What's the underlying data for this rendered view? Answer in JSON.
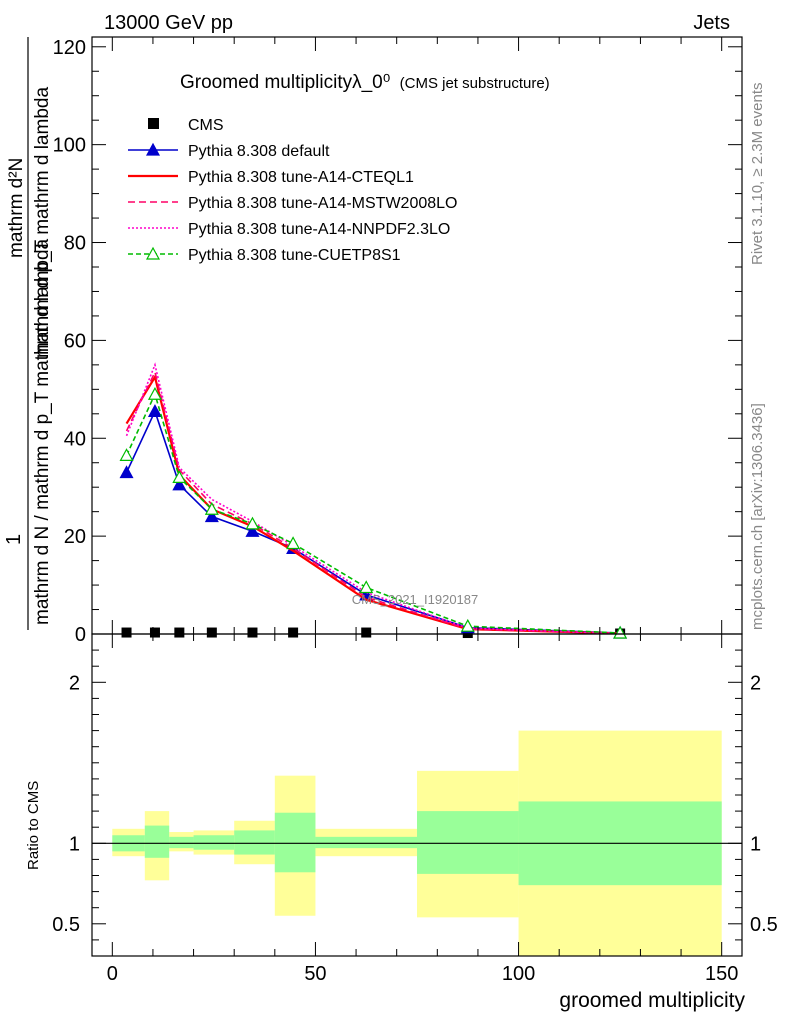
{
  "header": {
    "left": "13000 GeV pp",
    "right": "Jets"
  },
  "side_labels": {
    "rivet": "Rivet 3.1.10, ≥ 2.3M events",
    "mcplots": "mcplots.cern.ch [arXiv:1306.3436]"
  },
  "watermark": "CMS_2021_I1920187",
  "colors": {
    "cms": "#000000",
    "default": "#0000cc",
    "a14cteq": "#ff0000",
    "a14mstw": "#ff0066",
    "a14nnpdf": "#ff00cc",
    "cuetp8s1": "#00bb00",
    "band_outer": "#ffff99",
    "band_inner": "#99ff99"
  },
  "chart_data": [
    {
      "type": "line",
      "title": "Groomed multiplicityλ_0⁰",
      "subtitle": "(CMS jet substructure)",
      "ylabel_numerator": "1",
      "ylabel_denominator": "mathrm d N / mathrm d p_T mathrm d lambda",
      "ylabel_main": "mathrm d²N",
      "ylabel_main2": "mathrm d p_T mathrm d lambda",
      "xlim": [
        -5,
        155
      ],
      "ylim": [
        0,
        122
      ],
      "yticks": [
        0,
        20,
        40,
        60,
        80,
        100,
        120
      ],
      "ytick_labels": [
        "0",
        "20",
        "40",
        "60",
        "80",
        "100",
        "120"
      ],
      "legend": {
        "placement": "top-left"
      },
      "series": [
        {
          "key": "cms",
          "name": "CMS",
          "marker": "square",
          "x": [
            3.5,
            10.5,
            16.5,
            24.5,
            34.5,
            44.5,
            62.5,
            87.5,
            125
          ],
          "y": [
            0.3,
            0.3,
            0.3,
            0.3,
            0.3,
            0.3,
            0.3,
            0.2,
            0.1
          ]
        },
        {
          "key": "default",
          "name": "Pythia 8.308 default",
          "marker": "triangle",
          "dash": "",
          "x": [
            3.5,
            10.5,
            16.5,
            24.5,
            34.5,
            44.5,
            62.5,
            87.5,
            125
          ],
          "y": [
            33,
            45.5,
            30.5,
            24,
            21,
            17.5,
            8,
            1.3,
            0.2
          ]
        },
        {
          "key": "a14cteq",
          "name": "Pythia 8.308 tune-A14-CTEQL1",
          "marker": "",
          "dash": "",
          "x": [
            3.5,
            10.5,
            16.5,
            24.5,
            34.5,
            44.5,
            62.5,
            87.5,
            125
          ],
          "y": [
            43,
            52.5,
            32.5,
            25.5,
            22,
            17,
            7,
            1,
            0.1
          ]
        },
        {
          "key": "a14mstw",
          "name": "Pythia 8.308 tune-A14-MSTW2008LO",
          "marker": "",
          "dash": "7,4",
          "x": [
            3.5,
            10.5,
            16.5,
            24.5,
            34.5,
            44.5,
            62.5,
            87.5,
            125
          ],
          "y": [
            41.5,
            53.5,
            33.5,
            26.5,
            22.5,
            17.5,
            7.5,
            1,
            0.1
          ]
        },
        {
          "key": "a14nnpdf",
          "name": "Pythia 8.308 tune-A14-NNPDF2.3LO",
          "marker": "",
          "dash": "2,2",
          "x": [
            3.5,
            10.5,
            16.5,
            24.5,
            34.5,
            44.5,
            62.5,
            87.5,
            125
          ],
          "y": [
            40.5,
            55,
            34,
            27.5,
            23,
            18,
            8.5,
            1.2,
            0.1
          ]
        },
        {
          "key": "cuetp8s1",
          "name": "Pythia 8.308 tune-CUETP8S1",
          "marker": "triangle-open",
          "dash": "5,3",
          "x": [
            3.5,
            10.5,
            16.5,
            24.5,
            34.5,
            44.5,
            62.5,
            87.5,
            125
          ],
          "y": [
            36.5,
            49,
            32,
            25.5,
            22.5,
            18.5,
            9.5,
            1.6,
            0.2
          ]
        }
      ]
    },
    {
      "type": "area",
      "ylabel": "Ratio to CMS",
      "xlabel": "groomed multiplicity",
      "xlim": [
        -5,
        155
      ],
      "ylim": [
        0.3,
        2.3
      ],
      "xticks": [
        0,
        50,
        100,
        150
      ],
      "xtick_labels": [
        "0",
        "50",
        "100",
        "150"
      ],
      "yticks": [
        0.5,
        1,
        2
      ],
      "ytick_labels": [
        "0.5",
        "1",
        "2"
      ],
      "bins": [
        {
          "x_low": 0,
          "x_high": 8,
          "inner": [
            0.95,
            1.05
          ],
          "outer": [
            0.92,
            1.09
          ]
        },
        {
          "x_low": 8,
          "x_high": 14,
          "inner": [
            0.91,
            1.11
          ],
          "outer": [
            0.77,
            1.2
          ]
        },
        {
          "x_low": 14,
          "x_high": 20,
          "inner": [
            0.97,
            1.04
          ],
          "outer": [
            0.95,
            1.07
          ]
        },
        {
          "x_low": 20,
          "x_high": 30,
          "inner": [
            0.96,
            1.05
          ],
          "outer": [
            0.93,
            1.08
          ]
        },
        {
          "x_low": 30,
          "x_high": 40,
          "inner": [
            0.93,
            1.08
          ],
          "outer": [
            0.87,
            1.14
          ]
        },
        {
          "x_low": 40,
          "x_high": 50,
          "inner": [
            0.82,
            1.19
          ],
          "outer": [
            0.55,
            1.42
          ]
        },
        {
          "x_low": 50,
          "x_high": 75,
          "inner": [
            0.97,
            1.04
          ],
          "outer": [
            0.92,
            1.09
          ]
        },
        {
          "x_low": 75,
          "x_high": 100,
          "inner": [
            0.81,
            1.2
          ],
          "outer": [
            0.54,
            1.45
          ]
        },
        {
          "x_low": 100,
          "x_high": 150,
          "inner": [
            0.74,
            1.26
          ],
          "outer": [
            0.3,
            1.7
          ]
        }
      ]
    }
  ]
}
